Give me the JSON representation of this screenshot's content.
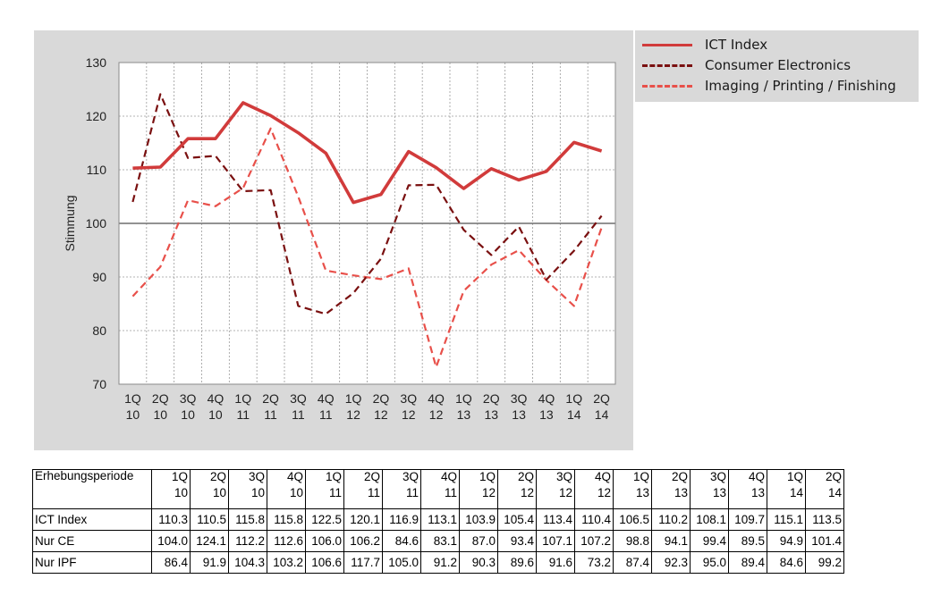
{
  "chart_data": {
    "type": "line",
    "ylabel": "Stimmung",
    "ylim": [
      70,
      130
    ],
    "yticks": [
      70,
      80,
      90,
      100,
      110,
      120,
      130
    ],
    "reference_line": 100,
    "categories": [
      [
        "1Q",
        "10"
      ],
      [
        "2Q",
        "10"
      ],
      [
        "3Q",
        "10"
      ],
      [
        "4Q",
        "10"
      ],
      [
        "1Q",
        "11"
      ],
      [
        "2Q",
        "11"
      ],
      [
        "3Q",
        "11"
      ],
      [
        "4Q",
        "11"
      ],
      [
        "1Q",
        "12"
      ],
      [
        "2Q",
        "12"
      ],
      [
        "3Q",
        "12"
      ],
      [
        "4Q",
        "12"
      ],
      [
        "1Q",
        "13"
      ],
      [
        "2Q",
        "13"
      ],
      [
        "3Q",
        "13"
      ],
      [
        "4Q",
        "13"
      ],
      [
        "1Q",
        "14"
      ],
      [
        "2Q",
        "14"
      ]
    ],
    "series": [
      {
        "name": "ICT Index",
        "color": "#d13b3b",
        "style": "solid",
        "values": [
          110.3,
          110.5,
          115.8,
          115.8,
          122.5,
          120.1,
          116.9,
          113.1,
          103.9,
          105.4,
          113.4,
          110.4,
          106.5,
          110.2,
          108.1,
          109.7,
          115.1,
          113.5
        ]
      },
      {
        "name": "Consumer Electronics",
        "color": "#7a1010",
        "style": "dashed",
        "values": [
          104.0,
          124.1,
          112.2,
          112.6,
          106.0,
          106.2,
          84.6,
          83.1,
          87.0,
          93.4,
          107.1,
          107.2,
          98.8,
          94.1,
          99.4,
          89.5,
          94.9,
          101.4
        ]
      },
      {
        "name": "Imaging / Printing / Finishing",
        "color": "#e8504a",
        "style": "dashed",
        "values": [
          86.4,
          91.9,
          104.3,
          103.2,
          106.6,
          117.7,
          105.0,
          91.2,
          90.3,
          89.6,
          91.6,
          73.2,
          87.4,
          92.3,
          95.0,
          89.4,
          84.6,
          99.2
        ]
      }
    ],
    "legend_position": "top-right, outside plot",
    "grid": true
  },
  "table": {
    "header_label": "Erhebungsperiode",
    "rows": [
      {
        "label": "ICT Index",
        "values": [
          "110.3",
          "110.5",
          "115.8",
          "115.8",
          "122.5",
          "120.1",
          "116.9",
          "113.1",
          "103.9",
          "105.4",
          "113.4",
          "110.4",
          "106.5",
          "110.2",
          "108.1",
          "109.7",
          "115.1",
          "113.5"
        ]
      },
      {
        "label": "Nur CE",
        "values": [
          "104.0",
          "124.1",
          "112.2",
          "112.6",
          "106.0",
          "106.2",
          "84.6",
          "83.1",
          "87.0",
          "93.4",
          "107.1",
          "107.2",
          "98.8",
          "94.1",
          "99.4",
          "89.5",
          "94.9",
          "101.4"
        ]
      },
      {
        "label": "Nur IPF",
        "values": [
          "86.4",
          "91.9",
          "104.3",
          "103.2",
          "106.6",
          "117.7",
          "105.0",
          "91.2",
          "90.3",
          "89.6",
          "91.6",
          "73.2",
          "87.4",
          "92.3",
          "95.0",
          "89.4",
          "84.6",
          "99.2"
        ]
      }
    ]
  }
}
